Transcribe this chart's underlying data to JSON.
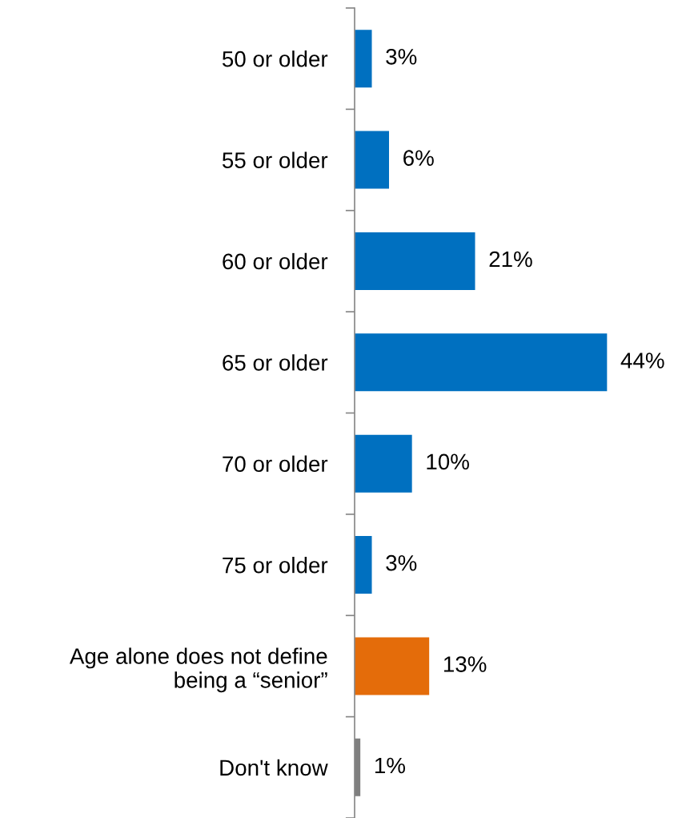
{
  "chart_data": {
    "type": "bar",
    "orientation": "horizontal",
    "categories": [
      "50 or older",
      "55 or older",
      "60 or older",
      "65 or older",
      "70 or older",
      "75 or older",
      "Age alone does not define\nbeing a “senior”",
      "Don't know"
    ],
    "values": [
      3,
      6,
      21,
      44,
      10,
      3,
      13,
      1
    ],
    "colors": [
      "#0070c0",
      "#0070c0",
      "#0070c0",
      "#0070c0",
      "#0070c0",
      "#0070c0",
      "#e46c0a",
      "#7f7f7f"
    ],
    "value_labels": [
      "3%",
      "6%",
      "21%",
      "44%",
      "10%",
      "3%",
      "13%",
      "1%"
    ],
    "grid": false,
    "legend": false
  }
}
